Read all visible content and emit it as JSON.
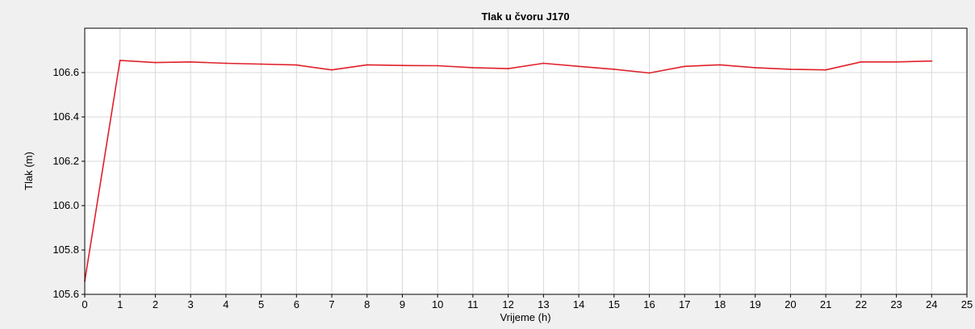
{
  "chart_data": {
    "type": "line",
    "title": "Tlak u čvoru J170",
    "xlabel": "Vrijeme (h)",
    "ylabel": "Tlak (m)",
    "xlim": [
      0,
      25
    ],
    "ylim": [
      105.6,
      106.8
    ],
    "xticks": [
      0,
      1,
      2,
      3,
      4,
      5,
      6,
      7,
      8,
      9,
      10,
      11,
      12,
      13,
      14,
      15,
      16,
      17,
      18,
      19,
      20,
      21,
      22,
      23,
      24,
      25
    ],
    "yticks": [
      105.6,
      105.8,
      106.0,
      106.2,
      106.4,
      106.6
    ],
    "ytick_labels": [
      "105.6",
      "105.8",
      "106.0",
      "106.2",
      "106.4",
      "106.6"
    ],
    "grid": true,
    "series": [
      {
        "color": "#e0202a",
        "x": [
          0,
          1,
          2,
          3,
          4,
          5,
          6,
          7,
          8,
          9,
          10,
          11,
          12,
          13,
          14,
          15,
          16,
          17,
          18,
          19,
          20,
          21,
          22,
          23,
          24
        ],
        "values": [
          105.66,
          106.655,
          106.645,
          106.648,
          106.642,
          106.638,
          106.634,
          106.612,
          106.635,
          106.632,
          106.631,
          106.622,
          106.618,
          106.642,
          106.628,
          106.615,
          106.598,
          106.628,
          106.635,
          106.622,
          106.615,
          106.612,
          106.648,
          106.648,
          106.652
        ]
      }
    ]
  }
}
